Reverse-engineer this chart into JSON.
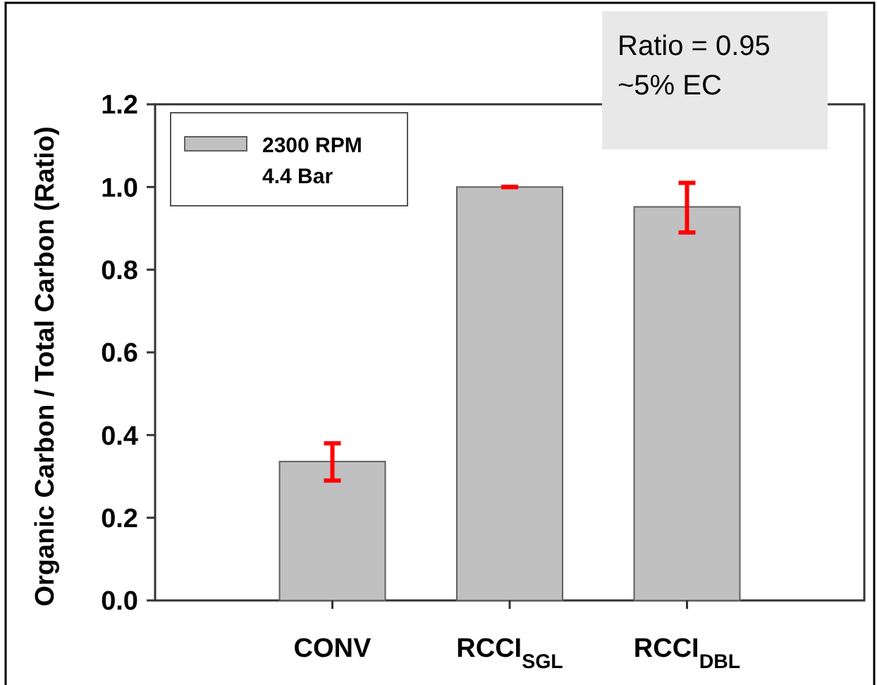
{
  "chart_data": {
    "type": "bar",
    "ylabel": "Organic Carbon / Total Carbon (Ratio)",
    "categories": [
      "CONV",
      "RCCI$_{SGL}$",
      "RCCI$_{DBL}$"
    ],
    "series": [
      {
        "name": "2300 RPM\n4.4 Bar",
        "color": "#c0c0c0",
        "values": [
          0.336,
          1.0,
          0.952
        ],
        "errors": [
          [
            0.29,
            0.38
          ],
          0,
          [
            0.89,
            1.01
          ]
        ]
      }
    ],
    "ylim": [
      0,
      1.2
    ],
    "yticks": [
      {
        "value": 0,
        "label": "0.0"
      },
      {
        "value": 0.2,
        "label": "0.2"
      },
      {
        "value": 0.4,
        "label": "0.4"
      },
      {
        "value": 0.6,
        "label": "0.6"
      },
      {
        "value": 0.8,
        "label": "0.8"
      },
      {
        "value": 1,
        "label": "1.0"
      },
      {
        "value": 1.2,
        "label": "1.2"
      }
    ],
    "legend": "top left",
    "grid": false,
    "annotations": [
      "Ratio = 0.95\n~5% EC"
    ]
  }
}
